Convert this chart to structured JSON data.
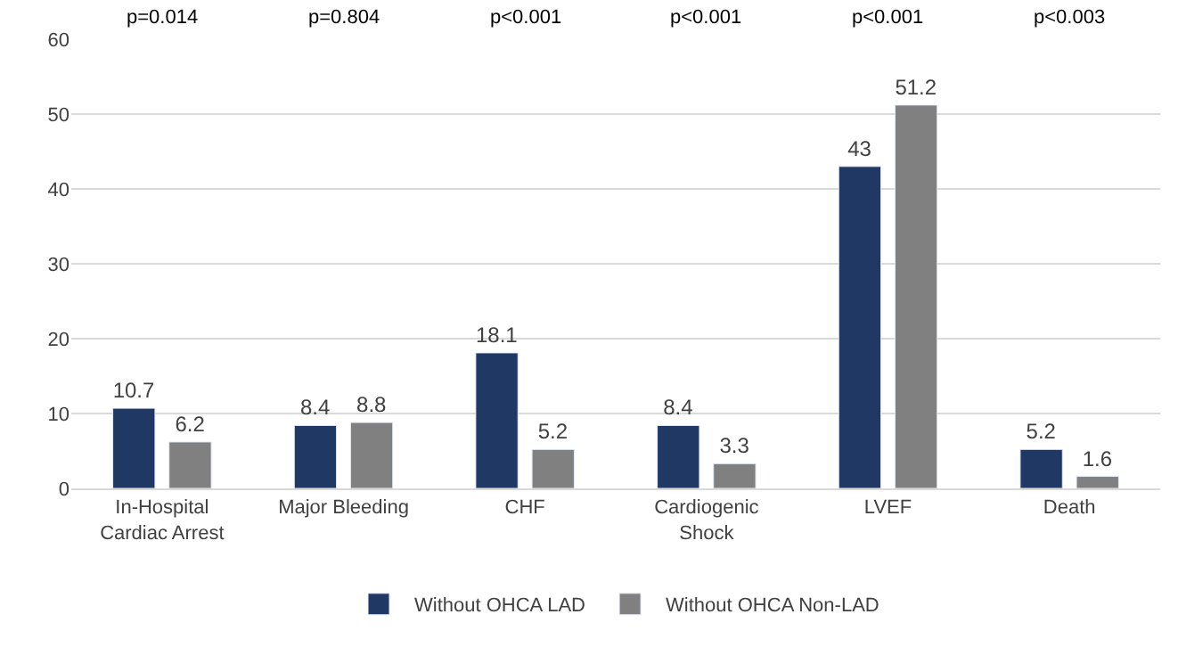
{
  "chart_data": {
    "type": "bar",
    "categories": [
      "In-Hospital Cardiac Arrest",
      "Major Bleeding",
      "CHF",
      "Cardiogenic Shock",
      "LVEF",
      "Death"
    ],
    "series": [
      {
        "name": "Without OHCA LAD",
        "color": "#203864",
        "values": [
          10.7,
          8.4,
          18.1,
          8.4,
          43,
          5.2
        ]
      },
      {
        "name": "Without OHCA Non-LAD",
        "color": "#808080",
        "values": [
          6.2,
          8.8,
          5.2,
          3.3,
          51.2,
          1.6
        ]
      }
    ],
    "ylim": [
      0,
      60
    ],
    "yticks": [
      0,
      10,
      20,
      30,
      40,
      50,
      60
    ],
    "grid": "y",
    "legend": "bottom",
    "data_labels": true,
    "annotations": [
      "p=0.014",
      "p=0.804",
      "p<0.001",
      "p<0.001",
      "p<0.001",
      "p<0.003"
    ]
  }
}
